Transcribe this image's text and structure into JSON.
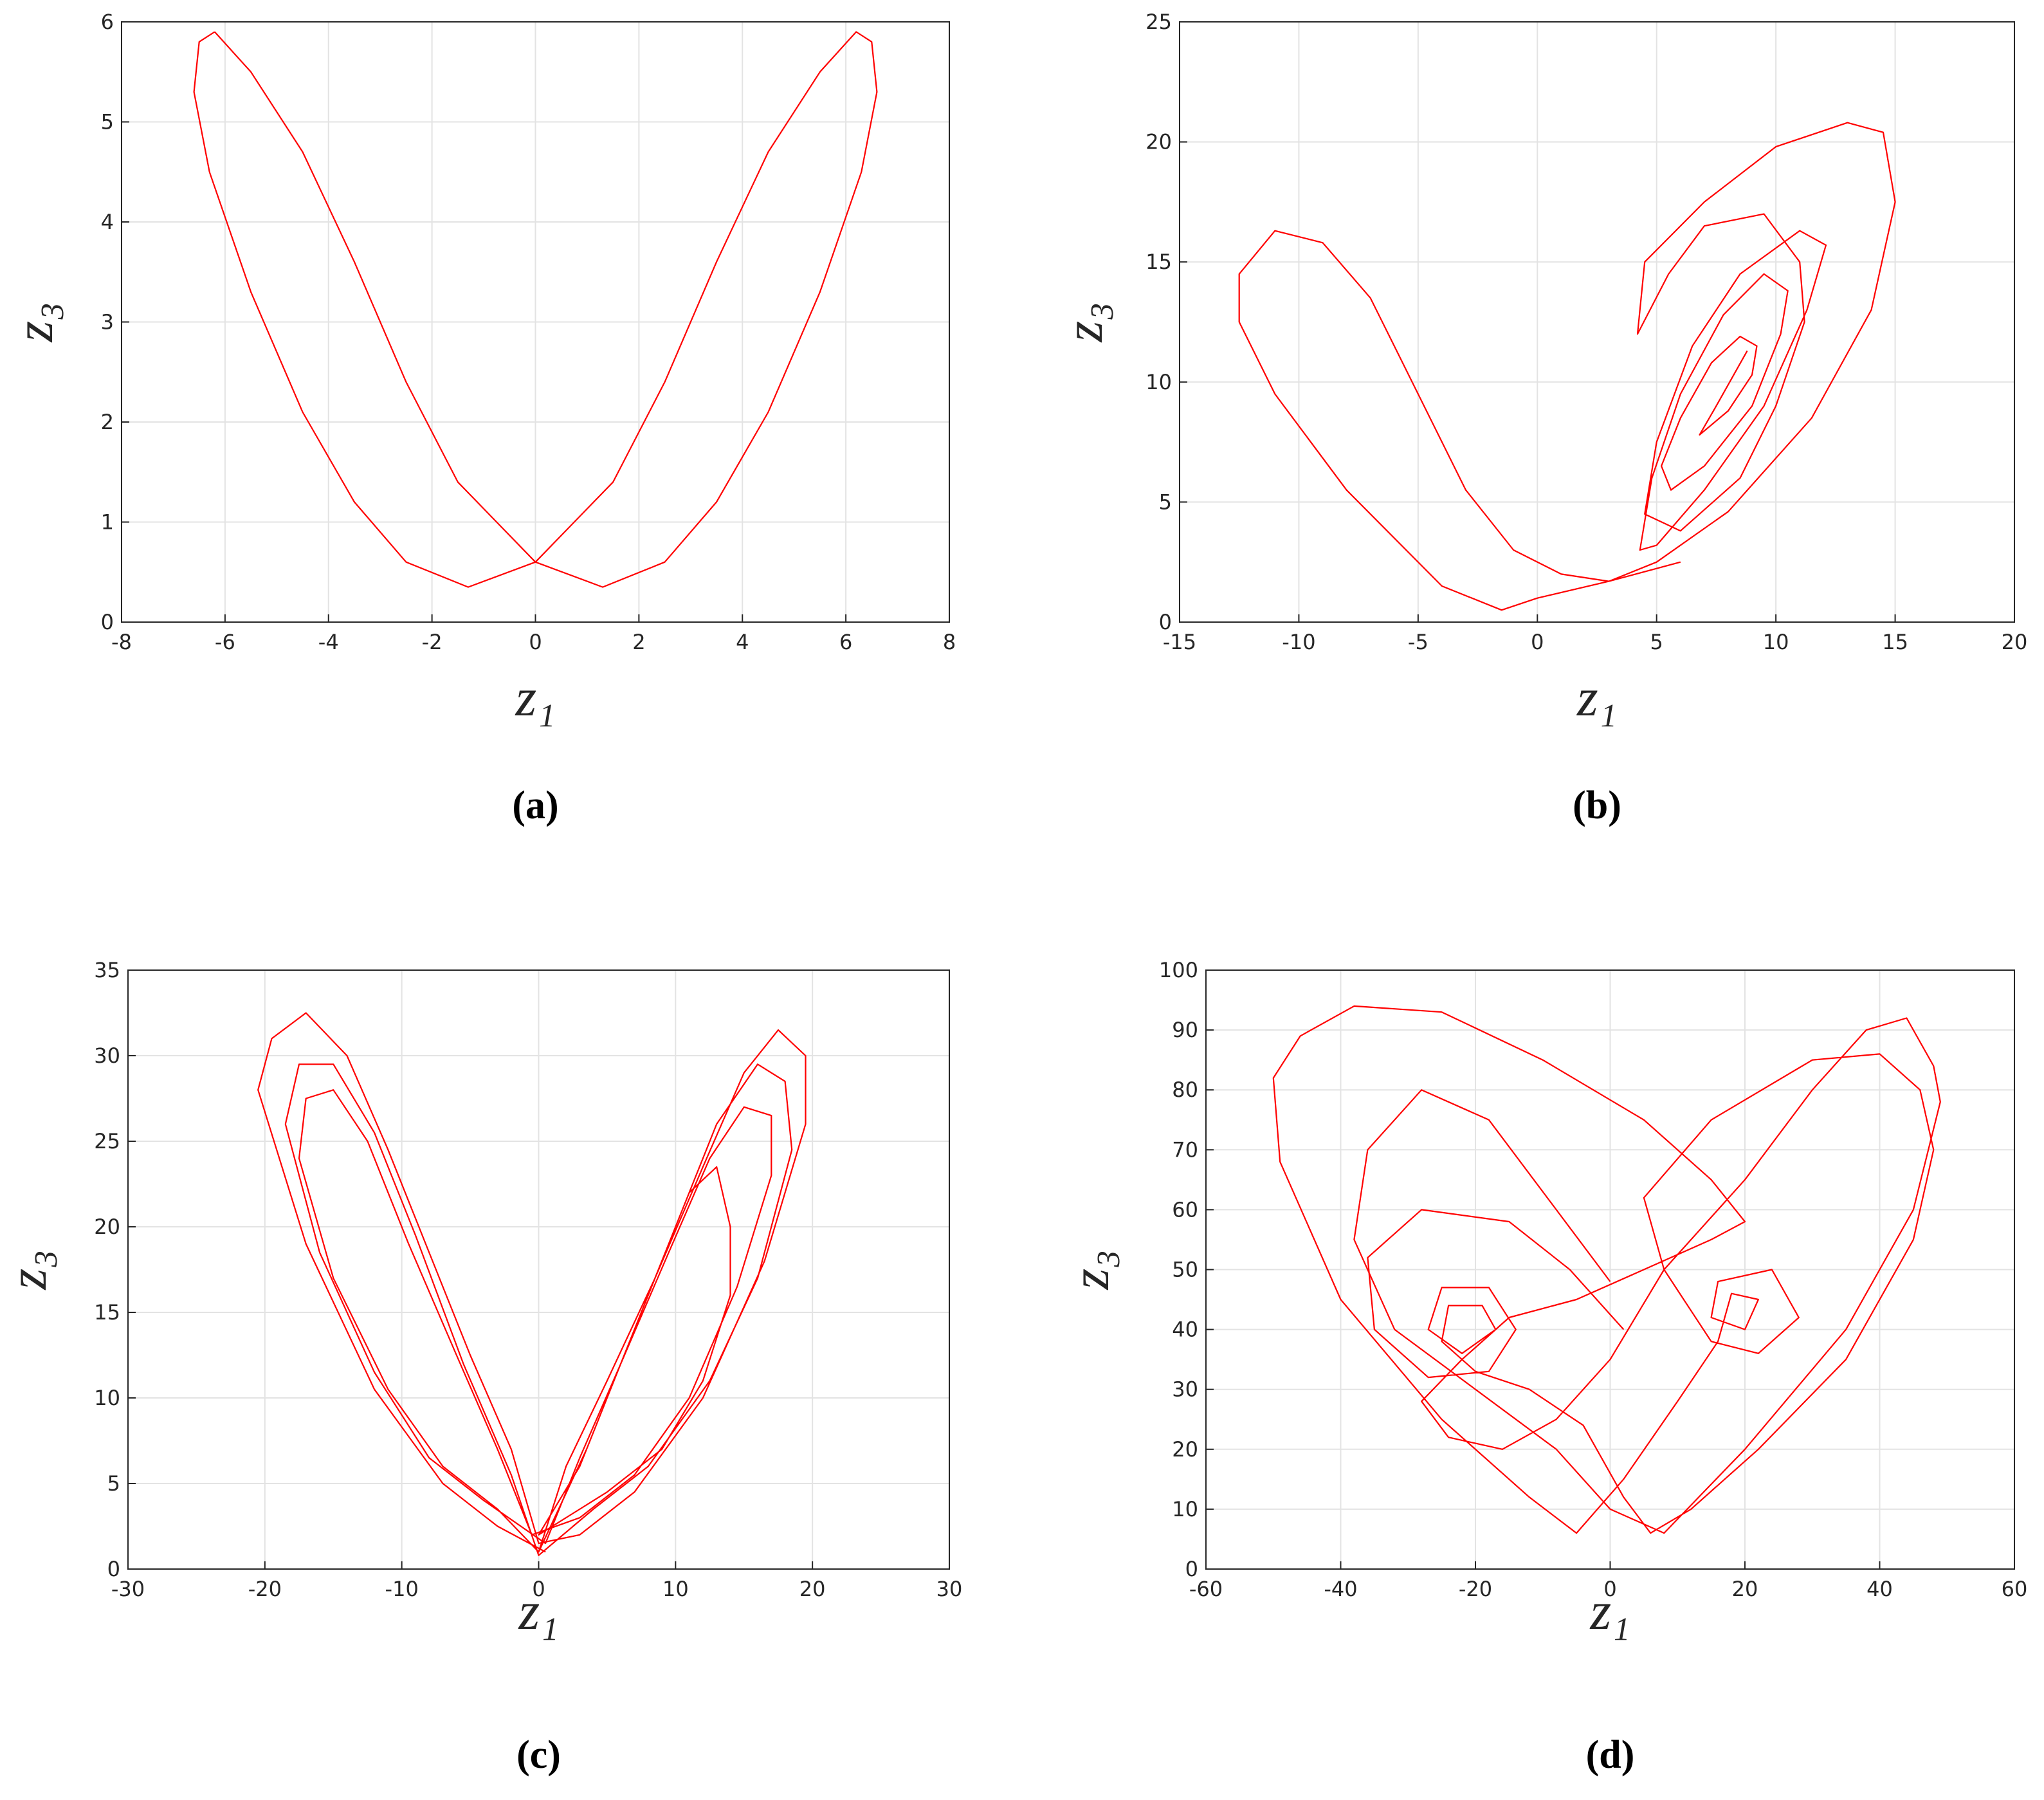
{
  "chart_data": [
    {
      "type": "line",
      "panel_label": "(a)",
      "x_label": "z₁",
      "y_label": "z₃",
      "color": "#ff0000",
      "grid": true,
      "xlim": [
        -8,
        8
      ],
      "xticks": [
        -8,
        -6,
        -4,
        -2,
        0,
        2,
        4,
        6,
        8
      ],
      "ylim": [
        0,
        6
      ],
      "yticks": [
        0,
        1,
        2,
        3,
        4,
        5,
        6
      ],
      "x": [
        -6.2,
        -5.5,
        -4.5,
        -3.5,
        -2.5,
        -1.5,
        0,
        1.3,
        2.5,
        3.5,
        4.5,
        5.5,
        6.3,
        6.6,
        6.5,
        6.2,
        5.5,
        4.5,
        3.5,
        2.5,
        1.5,
        0,
        -1.3,
        -2.5,
        -3.5,
        -4.5,
        -5.5,
        -6.3,
        -6.6,
        -6.5,
        -6.2
      ],
      "values": [
        5.9,
        5.5,
        4.7,
        3.6,
        2.4,
        1.4,
        0.6,
        0.35,
        0.6,
        1.2,
        2.1,
        3.3,
        4.5,
        5.3,
        5.8,
        5.9,
        5.5,
        4.7,
        3.6,
        2.4,
        1.4,
        0.6,
        0.35,
        0.6,
        1.2,
        2.1,
        3.3,
        4.5,
        5.3,
        5.8,
        5.9
      ]
    },
    {
      "type": "line",
      "panel_label": "(b)",
      "x_label": "z₁",
      "y_label": "z₃",
      "color": "#ff0000",
      "grid": true,
      "xlim": [
        -15,
        20
      ],
      "xticks": [
        -15,
        -10,
        -5,
        0,
        5,
        10,
        15,
        20
      ],
      "ylim": [
        0,
        25
      ],
      "yticks": [
        0,
        5,
        10,
        15,
        20,
        25
      ],
      "x": [
        8.8,
        7.5,
        6.8,
        8,
        9,
        9.2,
        8.5,
        7.3,
        6,
        5.2,
        5.6,
        7,
        9,
        10.2,
        10.5,
        9.5,
        7.8,
        6,
        4.8,
        4.3,
        5,
        7,
        9.5,
        11.3,
        12.1,
        11,
        8.5,
        6.5,
        5,
        4.5,
        6,
        8.5,
        10,
        11.2,
        11,
        9.5,
        7,
        5.5,
        4.2,
        4.5,
        7,
        10,
        13,
        14.5,
        15,
        14,
        11.5,
        8,
        5,
        3,
        0,
        -1.5,
        -4,
        -8,
        -11,
        -12.5,
        -12.5,
        -11,
        -9,
        -7,
        -5,
        -3,
        -1,
        1,
        3,
        6
      ],
      "values": [
        11.3,
        9,
        7.8,
        8.8,
        10.3,
        11.5,
        11.9,
        10.8,
        8.5,
        6.5,
        5.5,
        6.5,
        9,
        12,
        13.8,
        14.5,
        12.8,
        9.5,
        6,
        3,
        3.2,
        5.5,
        9,
        13,
        15.7,
        16.3,
        14.5,
        11.5,
        7.5,
        4.5,
        3.8,
        6,
        9,
        12.5,
        15,
        17,
        16.5,
        14.5,
        12,
        15,
        17.5,
        19.8,
        20.8,
        20.4,
        17.5,
        13,
        8.5,
        4.6,
        2.5,
        1.7,
        1,
        0.5,
        1.5,
        5.5,
        9.5,
        12.5,
        14.5,
        16.3,
        15.8,
        13.5,
        9.5,
        5.5,
        3,
        2,
        1.7,
        2.5
      ]
    },
    {
      "type": "line",
      "panel_label": "(c)",
      "x_label": "z₁",
      "y_label": "z₃",
      "color": "#ff0000",
      "grid": true,
      "xlim": [
        -30,
        30
      ],
      "xticks": [
        -30,
        -20,
        -10,
        0,
        10,
        20,
        30
      ],
      "ylim": [
        0,
        35
      ],
      "yticks": [
        0,
        5,
        10,
        15,
        20,
        25,
        30,
        35
      ],
      "x": [
        0.5,
        -3,
        -7,
        -12,
        -17,
        -20.5,
        -19.5,
        -17,
        -14,
        -11,
        -8,
        -5,
        -2,
        0,
        3,
        7,
        12,
        16.5,
        19.5,
        19.5,
        17.5,
        15,
        12,
        8.5,
        5,
        2,
        0,
        -3,
        -7,
        -11,
        -15,
        -17.5,
        -17,
        -15,
        -12.5,
        -9.5,
        -6,
        -3,
        -0.5,
        3,
        7,
        11,
        14.5,
        17,
        17,
        15,
        12.5,
        9.5,
        6,
        3,
        0.5,
        -4,
        -8,
        -12,
        -16,
        -18.5,
        -17.5,
        -15,
        -12,
        -9,
        -5.5,
        -2,
        0,
        4,
        8,
        12.5,
        16,
        18.5,
        18,
        16,
        13,
        10,
        6.5,
        3,
        0,
        5,
        9,
        12,
        14,
        14,
        13,
        11,
        9,
        6.5,
        3.5,
        0
      ],
      "values": [
        1,
        2.5,
        5,
        10.5,
        19,
        28,
        31,
        32.5,
        30,
        24.5,
        18.5,
        12.5,
        7,
        1.5,
        2,
        4.5,
        10,
        18,
        26,
        30,
        31.5,
        29,
        23.5,
        17,
        11,
        6,
        1,
        3.5,
        6,
        10.5,
        17,
        24,
        27.5,
        28,
        25,
        19,
        12.5,
        7,
        2,
        3,
        5.5,
        10,
        16.5,
        23,
        26.5,
        27,
        24,
        18.5,
        12,
        6.5,
        1.5,
        4,
        6.5,
        11.5,
        18.5,
        26,
        29.5,
        29.5,
        25.5,
        19.5,
        12,
        5.5,
        0.8,
        3.5,
        6,
        11,
        17,
        24.5,
        28.5,
        29.5,
        26,
        20,
        13,
        6,
        2,
        4.5,
        7,
        11,
        16,
        20,
        23.5,
        22,
        18,
        13,
        7,
        1
      ]
    },
    {
      "type": "line",
      "panel_label": "(d)",
      "x_label": "z₁",
      "y_label": "z₃",
      "color": "#ff0000",
      "grid": true,
      "xlim": [
        -60,
        60
      ],
      "xticks": [
        -60,
        -40,
        -20,
        0,
        20,
        40,
        60
      ],
      "ylim": [
        0,
        100
      ],
      "yticks": [
        0,
        10,
        20,
        30,
        40,
        50,
        60,
        70,
        80,
        90,
        100
      ],
      "x": [
        2,
        -6,
        -15,
        -28,
        -36,
        -35,
        -27,
        -18,
        -14,
        -18,
        -25,
        -27,
        -22,
        -17,
        -19,
        -24,
        -25,
        -20,
        -12,
        -4,
        2,
        6,
        12,
        22,
        35,
        45,
        48,
        46,
        40,
        30,
        15,
        5,
        8,
        15,
        22,
        28,
        24,
        16,
        15,
        20,
        22,
        18,
        16,
        10,
        2,
        -5,
        -12,
        -25,
        -40,
        -49,
        -50,
        -46,
        -38,
        -25,
        -10,
        5,
        15,
        20,
        15,
        5,
        -5,
        -15,
        -22,
        -28,
        -24,
        -16,
        -8,
        0,
        8,
        20,
        30,
        38,
        44,
        48,
        49,
        45,
        35,
        20,
        8,
        0,
        -8,
        -20,
        -32,
        -38,
        -36,
        -28,
        -18,
        -8,
        0
      ],
      "values": [
        40,
        50,
        58,
        60,
        52,
        40,
        32,
        33,
        40,
        47,
        47,
        40,
        36,
        40,
        44,
        44,
        38,
        33,
        30,
        24,
        12,
        6,
        10,
        20,
        35,
        55,
        70,
        80,
        86,
        85,
        75,
        62,
        50,
        38,
        36,
        42,
        50,
        48,
        42,
        40,
        45,
        46,
        38,
        28,
        15,
        6,
        12,
        25,
        45,
        68,
        82,
        89,
        94,
        93,
        85,
        75,
        65,
        58,
        55,
        50,
        45,
        42,
        35,
        28,
        22,
        20,
        25,
        35,
        50,
        65,
        80,
        90,
        92,
        84,
        78,
        60,
        40,
        20,
        6,
        10,
        20,
        30,
        40,
        55,
        70,
        80,
        75,
        60,
        48
      ]
    }
  ]
}
